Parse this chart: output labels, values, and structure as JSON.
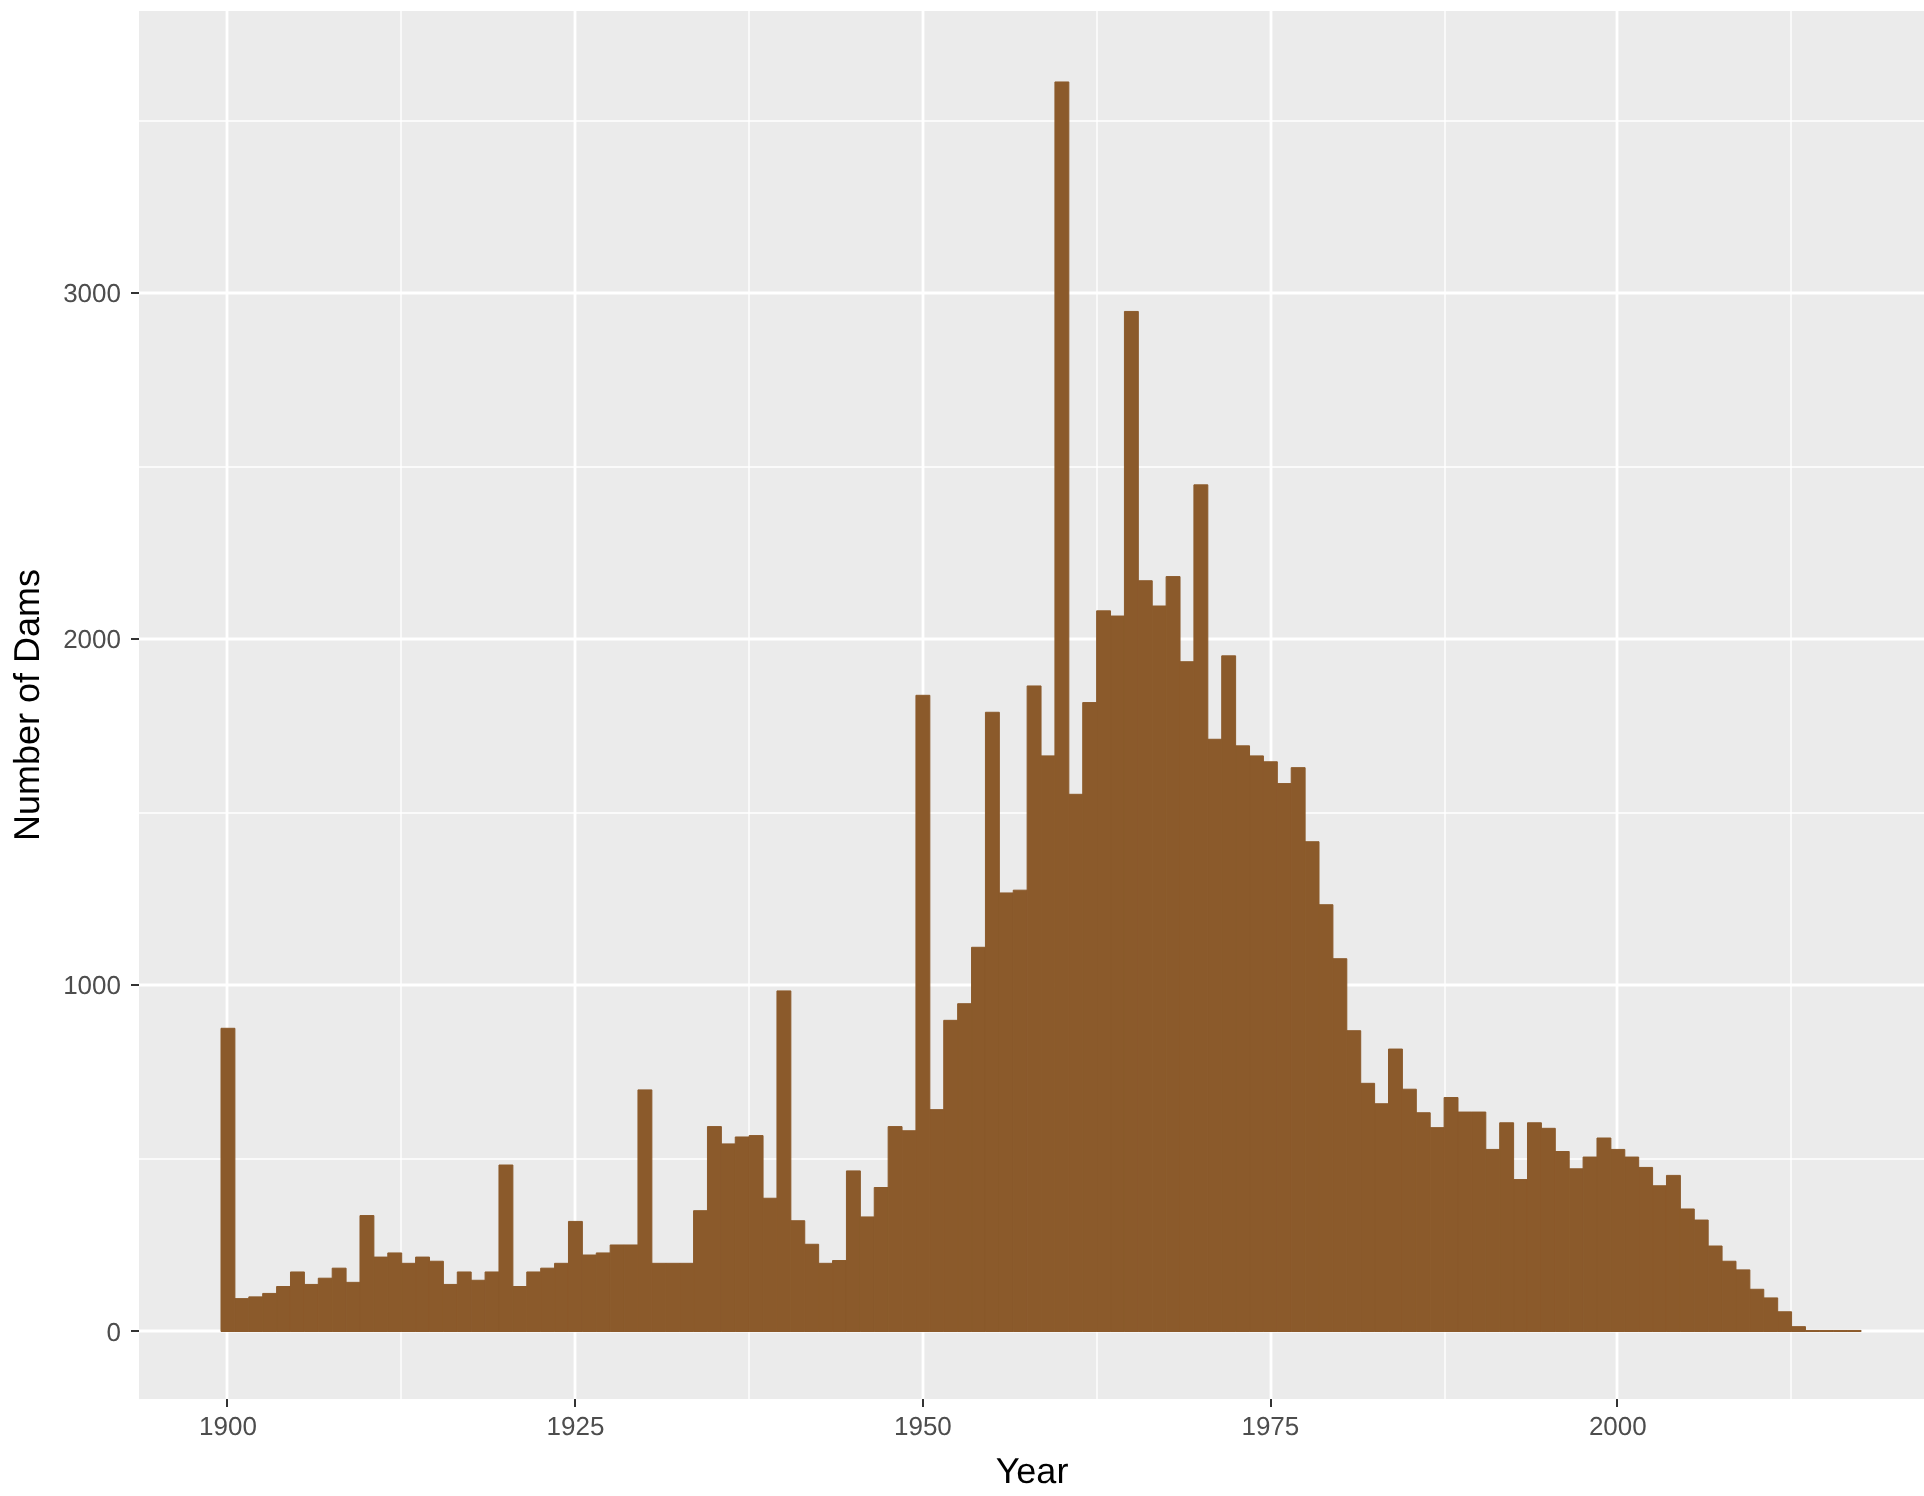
{
  "chart_data": {
    "type": "histogram",
    "xlabel": "Year",
    "ylabel": "Number of Dams",
    "bins": [
      1899.5,
      1900.5,
      1901.5,
      1902.5,
      1903.5,
      1904.5,
      1905.5,
      1906.5,
      1907.5,
      1908.5,
      1909.5,
      1910.5,
      1911.5,
      1912.5,
      1913.5,
      1914.5,
      1915.5,
      1916.5,
      1917.5,
      1918.5,
      1919.5,
      1920.5,
      1921.5,
      1922.5,
      1923.5,
      1924.5,
      1925.5,
      1926.5,
      1927.5,
      1928.5,
      1929.5,
      1930.5,
      1931.5,
      1932.5,
      1933.5,
      1934.5,
      1935.5,
      1936.5,
      1937.5,
      1938.5,
      1939.5,
      1940.5,
      1941.5,
      1942.5,
      1943.5,
      1944.5,
      1945.5,
      1946.5,
      1947.5,
      1948.5,
      1949.5,
      1950.5,
      1951.5,
      1952.5,
      1953.5,
      1954.5,
      1955.5,
      1956.5,
      1957.5,
      1958.5,
      1959.5,
      1960.5,
      1961.5,
      1962.5,
      1963.5,
      1964.5,
      1965.5,
      1966.5,
      1967.5,
      1968.5,
      1969.5,
      1970.5,
      1971.5,
      1972.5,
      1973.5,
      1974.5,
      1975.5,
      1976.5,
      1977.5,
      1978.5,
      1979.5,
      1980.5,
      1981.5,
      1982.5,
      1983.5,
      1984.5,
      1985.5,
      1986.5,
      1987.5,
      1988.5,
      1989.5,
      1990.5,
      1991.5,
      1992.5,
      1993.5,
      1994.5,
      1995.5,
      1996.5,
      1997.5,
      1998.5,
      1999.5,
      2000.5,
      2001.5,
      2002.5,
      2003.5,
      2004.5,
      2005.5,
      2006.5,
      2007.5,
      2008.5,
      2009.5,
      2010.5,
      2011.5,
      2012.5,
      2013.5,
      2014.5,
      2015.5,
      2016.5,
      2017.5
    ],
    "values": [
      876,
      95,
      100,
      110,
      130,
      172,
      136,
      154,
      183,
      142,
      335,
      215,
      227,
      197,
      215,
      203,
      136,
      172,
      148,
      172,
      481,
      130,
      172,
      183,
      197,
      318,
      221,
      227,
      250,
      250,
      698,
      197,
      197,
      197,
      349,
      592,
      542,
      562,
      566,
      385,
      984,
      320,
      252,
      197,
      205,
      464,
      331,
      416,
      592,
      580,
      1838,
      641,
      899,
      947,
      1110,
      1789,
      1267,
      1275,
      1865,
      1663,
      3610,
      1552,
      1817,
      2082,
      2067,
      2947,
      2169,
      2096,
      2181,
      1935,
      2446,
      1711,
      1952,
      1692,
      1663,
      1646,
      1583,
      1629,
      1415,
      1233,
      1077,
      869,
      717,
      658,
      816,
      700,
      632,
      589,
      676,
      634,
      634,
      526,
      603,
      439,
      603,
      587,
      520,
      470,
      504,
      559,
      526,
      504,
      474,
      421,
      451,
      354,
      322,
      247,
      203,
      178,
      122,
      97,
      57,
      14,
      3,
      3,
      3,
      3
    ],
    "color": "#8b5a2b",
    "xlim": [
      1893.6,
      2022.1
    ],
    "ylim": [
      -195,
      3815
    ],
    "xticks": [
      1900,
      1925,
      1950,
      1975,
      2000
    ],
    "yticks": [
      0,
      1000,
      2000,
      3000
    ],
    "grid": true
  }
}
